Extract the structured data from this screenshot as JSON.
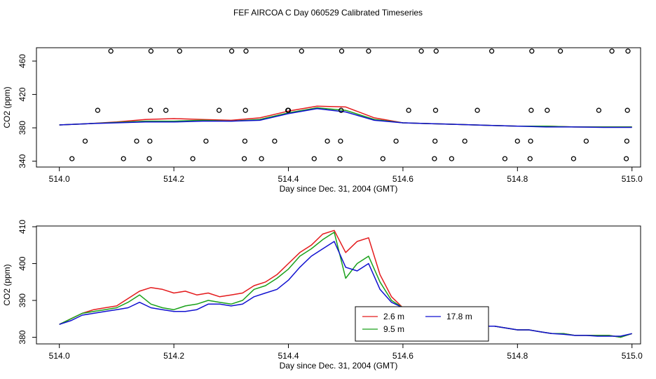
{
  "title": "FEF AIRCOA C  Day 060529  Calibrated Timeseries",
  "colors": {
    "red": "#e41a1c",
    "green": "#1aa11a",
    "blue": "#1010d0",
    "axis": "#000000"
  },
  "chart_data": [
    {
      "type": "line",
      "xlabel": "Day since Dec. 31, 2004 (GMT)",
      "ylabel": "CO2 (ppm)",
      "xlim": [
        513.96,
        515.015
      ],
      "ylim": [
        333,
        476
      ],
      "xticks": [
        "514.0",
        "514.2",
        "514.4",
        "514.6",
        "514.8",
        "515.0"
      ],
      "xtick_values": [
        514.0,
        514.2,
        514.4,
        514.6,
        514.8,
        515.0
      ],
      "yticks": [
        "340",
        "380",
        "420",
        "460"
      ],
      "ytick_values": [
        340,
        380,
        420,
        460
      ],
      "line_x": [
        514.0,
        514.05,
        514.1,
        514.15,
        514.2,
        514.25,
        514.3,
        514.35,
        514.4,
        514.45,
        514.5,
        514.55,
        514.6,
        514.65,
        514.7,
        514.75,
        514.8,
        514.85,
        514.9,
        514.95,
        515.0
      ],
      "line_red": [
        383.5,
        385,
        387,
        390,
        391,
        390,
        389,
        392,
        400,
        406,
        405,
        392,
        386,
        385,
        384,
        383,
        382,
        382,
        381,
        381,
        381
      ],
      "line_green": [
        383.5,
        385,
        386.5,
        388,
        388,
        389,
        388,
        390,
        398,
        404,
        401,
        390,
        386,
        385,
        384,
        383,
        382,
        382,
        381,
        381,
        381
      ],
      "line_blue": [
        383.5,
        385,
        386,
        387,
        387,
        388,
        388,
        389,
        397,
        403,
        399,
        389,
        386,
        385,
        384,
        383,
        382,
        381,
        381,
        380.5,
        380.5
      ],
      "markers_x": [
        514.022,
        514.045,
        514.067,
        514.09,
        514.112,
        514.135,
        514.157,
        514.158,
        514.159,
        514.16,
        514.186,
        514.21,
        514.233,
        514.256,
        514.279,
        514.301,
        514.323,
        514.324,
        514.325,
        514.326,
        514.353,
        514.376,
        514.399,
        514.4,
        514.423,
        514.445,
        514.468,
        514.49,
        514.491,
        514.492,
        514.493,
        514.54,
        514.565,
        514.588,
        514.61,
        514.632,
        514.655,
        514.656,
        514.657,
        514.658,
        514.685,
        514.708,
        514.73,
        514.755,
        514.778,
        514.8,
        514.822,
        514.823,
        514.824,
        514.825,
        514.852,
        514.875,
        514.898,
        514.92,
        514.942,
        514.965,
        514.99,
        514.991,
        514.992,
        514.993
      ],
      "markers_y": [
        343,
        364,
        401,
        472,
        343,
        364,
        343,
        364,
        401,
        472,
        401,
        472,
        343,
        364,
        401,
        472,
        343,
        364,
        401,
        472,
        343,
        364,
        401,
        401,
        472,
        343,
        364,
        343,
        364,
        401,
        472,
        472,
        343,
        364,
        401,
        472,
        343,
        364,
        401,
        472,
        343,
        364,
        401,
        472,
        343,
        364,
        343,
        364,
        401,
        472,
        401,
        472,
        343,
        364,
        401,
        472,
        343,
        364,
        401,
        472
      ]
    },
    {
      "type": "line",
      "xlabel": "Day since Dec. 31, 2004 (GMT)",
      "ylabel": "CO2 (ppm)",
      "xlim": [
        513.96,
        515.015
      ],
      "ylim": [
        378.2,
        410.2
      ],
      "xticks": [
        "514.0",
        "514.2",
        "514.4",
        "514.6",
        "514.8",
        "515.0"
      ],
      "xtick_values": [
        514.0,
        514.2,
        514.4,
        514.6,
        514.8,
        515.0
      ],
      "yticks": [
        "380",
        "390",
        "400",
        "410"
      ],
      "ytick_values": [
        380,
        390,
        400,
        410
      ],
      "legend_position": "bottom-center",
      "x": [
        514.0,
        514.02,
        514.04,
        514.06,
        514.08,
        514.1,
        514.12,
        514.14,
        514.16,
        514.18,
        514.2,
        514.22,
        514.24,
        514.26,
        514.28,
        514.3,
        514.32,
        514.34,
        514.36,
        514.38,
        514.4,
        514.42,
        514.44,
        514.46,
        514.48,
        514.5,
        514.52,
        514.54,
        514.56,
        514.58,
        514.6,
        514.62,
        514.64,
        514.66,
        514.68,
        514.7,
        514.72,
        514.74,
        514.76,
        514.78,
        514.8,
        514.82,
        514.84,
        514.86,
        514.88,
        514.9,
        514.92,
        514.94,
        514.96,
        514.98,
        515.0
      ],
      "series": [
        {
          "name": "2.6 m",
          "color": "#e41a1c",
          "values": [
            383.5,
            385,
            386.5,
            387.5,
            388,
            388.5,
            390.5,
            392.5,
            393.5,
            393,
            392,
            392.5,
            391.5,
            392,
            391,
            391.5,
            392,
            394,
            395,
            397,
            400,
            403,
            405,
            408,
            409,
            403,
            406,
            407,
            397,
            391,
            388,
            386,
            385,
            384.5,
            384,
            384,
            383.5,
            383,
            383,
            382.5,
            382,
            382,
            381.5,
            381,
            381,
            380.5,
            380.5,
            380.5,
            380.5,
            380,
            381
          ]
        },
        {
          "name": "9.5 m",
          "color": "#1aa11a",
          "values": [
            383.5,
            385,
            386.5,
            387,
            387.5,
            388,
            389.5,
            391.5,
            389,
            388,
            387.5,
            388.5,
            389,
            390,
            389.5,
            389,
            390,
            393,
            394,
            396,
            398.5,
            402,
            404,
            406.5,
            408.5,
            396,
            400,
            402,
            395,
            390,
            388,
            386,
            385,
            384.5,
            384,
            384,
            383.5,
            383,
            383,
            382.5,
            382,
            382,
            381.5,
            381,
            381,
            380.5,
            380.5,
            380.5,
            380.5,
            380,
            381
          ]
        },
        {
          "name": "17.8 m",
          "color": "#1010d0",
          "values": [
            383.5,
            384.5,
            386,
            386.5,
            387,
            387.5,
            388,
            389.5,
            388,
            387.5,
            387,
            387,
            387.5,
            389,
            389,
            388.5,
            389,
            391,
            392,
            393,
            395.5,
            399,
            402,
            404,
            406,
            399,
            398,
            400,
            393,
            389.5,
            388,
            386,
            385,
            384.5,
            384,
            383.5,
            383.5,
            383,
            383,
            382.5,
            382,
            382,
            381.5,
            381,
            380.8,
            380.5,
            380.5,
            380.3,
            380.3,
            380.3,
            381
          ]
        }
      ]
    }
  ]
}
